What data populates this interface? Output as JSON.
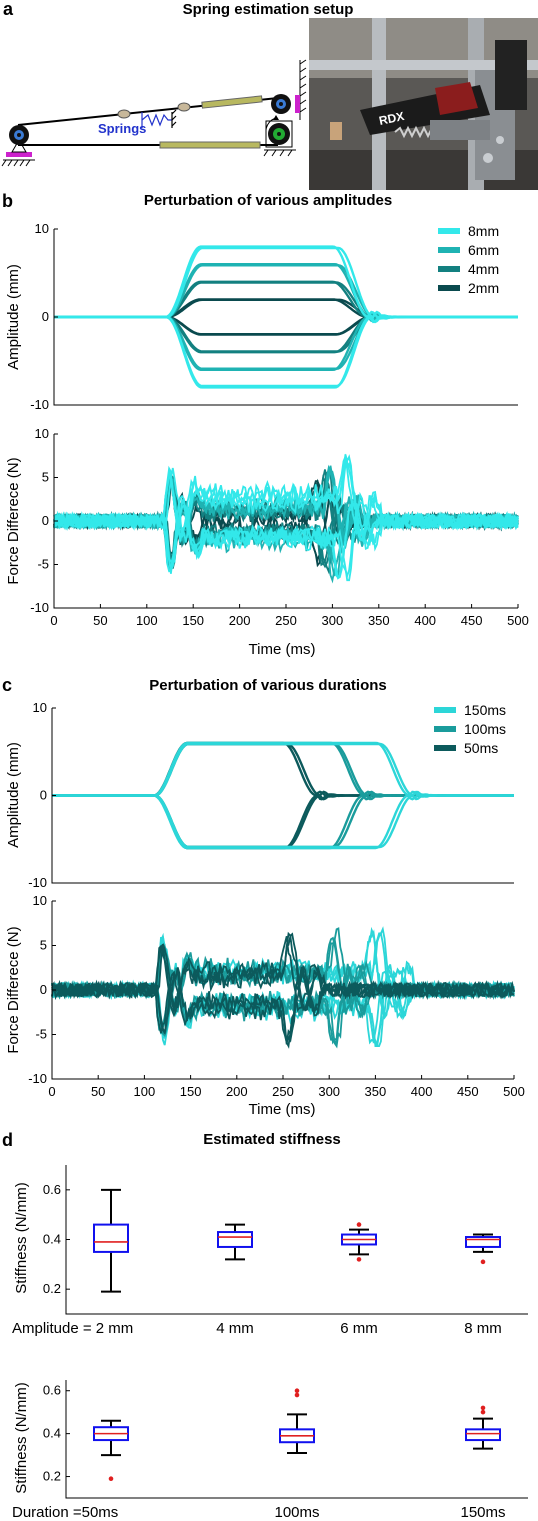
{
  "figure": {
    "panels": {
      "a": {
        "letter": "a",
        "title": "Spring estimation setup",
        "springs_label": "Springs",
        "photo_label": "RDX"
      },
      "b": {
        "letter": "b",
        "title": "Perturbation of various amplitudes"
      },
      "c": {
        "letter": "c",
        "title": "Perturbation of various durations"
      },
      "d": {
        "letter": "d",
        "title": "Estimated stiffness"
      }
    }
  },
  "colors": {
    "c8": "#33e8ea",
    "c6": "#1fb3b3",
    "c4": "#138080",
    "c2": "#0a4a4e",
    "c150": "#2cd6d8",
    "c100": "#1a9c9c",
    "c50": "#0c5a5c",
    "box_edge": "#1010ee",
    "median": "#e02020",
    "outlier": "#e02020"
  },
  "chart_data": [
    {
      "id": "b-amp",
      "type": "line",
      "xlim": [
        0,
        500
      ],
      "ylim": [
        -10,
        10
      ],
      "yticks": [
        -10,
        0,
        10
      ],
      "xlabel": "",
      "ylabel": "Amplitude (mm)",
      "legend_position": "top-right",
      "series": [
        {
          "name": "8mm",
          "amplitude": 8,
          "onset": 120,
          "offset": 300,
          "color_key": "c8"
        },
        {
          "name": "6mm",
          "amplitude": 6,
          "onset": 120,
          "offset": 300,
          "color_key": "c6"
        },
        {
          "name": "4mm",
          "amplitude": 4,
          "onset": 120,
          "offset": 300,
          "color_key": "c4"
        },
        {
          "name": "2mm",
          "amplitude": 2,
          "onset": 120,
          "offset": 300,
          "color_key": "c2"
        }
      ]
    },
    {
      "id": "b-force",
      "type": "line",
      "xlim": [
        0,
        500
      ],
      "ylim": [
        -10,
        10
      ],
      "xticks": [
        0,
        50,
        100,
        150,
        200,
        250,
        300,
        350,
        400,
        450,
        500
      ],
      "yticks": [
        -10,
        -5,
        0,
        5,
        10
      ],
      "xlabel": "Time (ms)",
      "ylabel": "Force Differece (N)",
      "peak_positive": 8.6,
      "peak_negative": -6.8
    },
    {
      "id": "c-amp",
      "type": "line",
      "xlim": [
        0,
        500
      ],
      "ylim": [
        -10,
        10
      ],
      "yticks": [
        -10,
        0,
        10
      ],
      "xlabel": "",
      "ylabel": "Amplitude (mm)",
      "legend_position": "top-right",
      "series": [
        {
          "name": "150ms",
          "amplitude": 6,
          "onset": 110,
          "offset": 350,
          "color_key": "c150"
        },
        {
          "name": "100ms",
          "amplitude": 6,
          "onset": 110,
          "offset": 300,
          "color_key": "c100"
        },
        {
          "name": "50ms",
          "amplitude": 6,
          "onset": 110,
          "offset": 250,
          "color_key": "c50"
        }
      ]
    },
    {
      "id": "c-force",
      "type": "line",
      "xlim": [
        0,
        500
      ],
      "ylim": [
        -10,
        10
      ],
      "xticks": [
        0,
        50,
        100,
        150,
        200,
        250,
        300,
        350,
        400,
        450,
        500
      ],
      "yticks": [
        -10,
        -5,
        0,
        5,
        10
      ],
      "xlabel": "Time (ms)",
      "ylabel": "Force Differece (N)",
      "peak_positive": 7.5,
      "peak_negative": -6.3
    },
    {
      "id": "d-amp",
      "type": "box",
      "ylabel": "Stiffness (N/mm)",
      "ylim": [
        0.1,
        0.7
      ],
      "yticks": [
        0.2,
        0.4,
        0.6
      ],
      "categories": [
        "Amplitude = 2 mm",
        "4 mm",
        "6 mm",
        "8 mm"
      ],
      "boxes": [
        {
          "min": 0.19,
          "q1": 0.35,
          "median": 0.39,
          "q3": 0.46,
          "max": 0.6,
          "outliers": []
        },
        {
          "min": 0.32,
          "q1": 0.37,
          "median": 0.41,
          "q3": 0.43,
          "max": 0.46,
          "outliers": []
        },
        {
          "min": 0.34,
          "q1": 0.38,
          "median": 0.4,
          "q3": 0.42,
          "max": 0.44,
          "outliers": [
            0.46,
            0.32
          ]
        },
        {
          "min": 0.35,
          "q1": 0.37,
          "median": 0.4,
          "q3": 0.41,
          "max": 0.42,
          "outliers": [
            0.31
          ]
        }
      ]
    },
    {
      "id": "d-dur",
      "type": "box",
      "ylabel": "Stiffness (N/mm)",
      "ylim": [
        0.1,
        0.65
      ],
      "yticks": [
        0.2,
        0.4,
        0.6
      ],
      "categories": [
        "Duration =50ms",
        "100ms",
        "150ms"
      ],
      "boxes": [
        {
          "min": 0.3,
          "q1": 0.37,
          "median": 0.4,
          "q3": 0.43,
          "max": 0.46,
          "outliers": [
            0.19
          ]
        },
        {
          "min": 0.31,
          "q1": 0.36,
          "median": 0.39,
          "q3": 0.42,
          "max": 0.49,
          "outliers": [
            0.58,
            0.6
          ]
        },
        {
          "min": 0.33,
          "q1": 0.37,
          "median": 0.4,
          "q3": 0.42,
          "max": 0.47,
          "outliers": [
            0.5,
            0.52
          ]
        }
      ]
    }
  ]
}
